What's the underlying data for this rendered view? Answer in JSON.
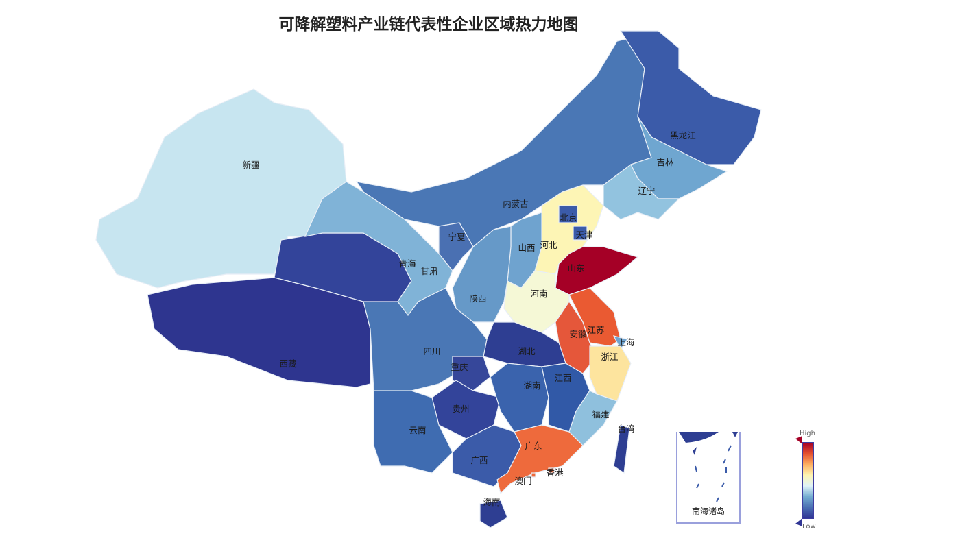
{
  "title": "可降解塑料产业链代表性企业区域热力地图",
  "legend": {
    "high": "High",
    "low": "Low",
    "colors": [
      "#a50026",
      "#e4502f",
      "#fdae61",
      "#fef4b0",
      "#e0f3f8",
      "#74add1",
      "#4a6fb3",
      "#313695"
    ]
  },
  "inset": {
    "label": "南海诸岛"
  },
  "provinces": {
    "xinjiang": {
      "name": "新疆",
      "color": "#c7e5f0"
    },
    "xizang": {
      "name": "西藏",
      "color": "#2e358f"
    },
    "qinghai": {
      "name": "青海",
      "color": "#33449a"
    },
    "gansu": {
      "name": "甘肃",
      "color": "#80b3d7"
    },
    "neimenggu": {
      "name": "内蒙古",
      "color": "#4a77b5"
    },
    "heilongjiang": {
      "name": "黑龙江",
      "color": "#3b5ba9"
    },
    "jilin": {
      "name": "吉林",
      "color": "#6fa6d0"
    },
    "liaoning": {
      "name": "辽宁",
      "color": "#92c3df"
    },
    "hebei": {
      "name": "河北",
      "color": "#fdf5b5"
    },
    "beijing": {
      "name": "北京",
      "color": "#3b5ba9"
    },
    "tianjin": {
      "name": "天津",
      "color": "#3b5ba9"
    },
    "shanxi": {
      "name": "山西",
      "color": "#6fa3cf"
    },
    "shaanxi": {
      "name": "陕西",
      "color": "#6699c8"
    },
    "ningxia": {
      "name": "宁夏",
      "color": "#4a70b2"
    },
    "shandong": {
      "name": "山东",
      "color": "#a50026"
    },
    "henan": {
      "name": "河南",
      "color": "#f5f8d6"
    },
    "jiangsu": {
      "name": "江苏",
      "color": "#ea5a32"
    },
    "anhui": {
      "name": "安徽",
      "color": "#e5573a"
    },
    "shanghai": {
      "name": "上海",
      "color": "#6fa3cf"
    },
    "zhejiang": {
      "name": "浙江",
      "color": "#fde49e"
    },
    "hubei": {
      "name": "湖北",
      "color": "#2e3e92"
    },
    "sichuan": {
      "name": "四川",
      "color": "#4a77b5"
    },
    "chongqing": {
      "name": "重庆",
      "color": "#36479a"
    },
    "guizhou": {
      "name": "贵州",
      "color": "#33449a"
    },
    "yunnan": {
      "name": "云南",
      "color": "#3f6cb1"
    },
    "guangxi": {
      "name": "广西",
      "color": "#3b5ba9"
    },
    "hunan": {
      "name": "湖南",
      "color": "#3a63ad"
    },
    "jiangxi": {
      "name": "江西",
      "color": "#3159a7"
    },
    "fujian": {
      "name": "福建",
      "color": "#8fc0dd"
    },
    "guangdong": {
      "name": "广东",
      "color": "#ee6a3c"
    },
    "xianggang": {
      "name": "香港",
      "color": "#ee6a3c"
    },
    "aomen": {
      "name": "澳门",
      "color": "#ee6a3c"
    },
    "hainan": {
      "name": "海南",
      "color": "#2e3e92"
    },
    "taiwan": {
      "name": "台湾",
      "color": "#2e3e92"
    }
  }
}
